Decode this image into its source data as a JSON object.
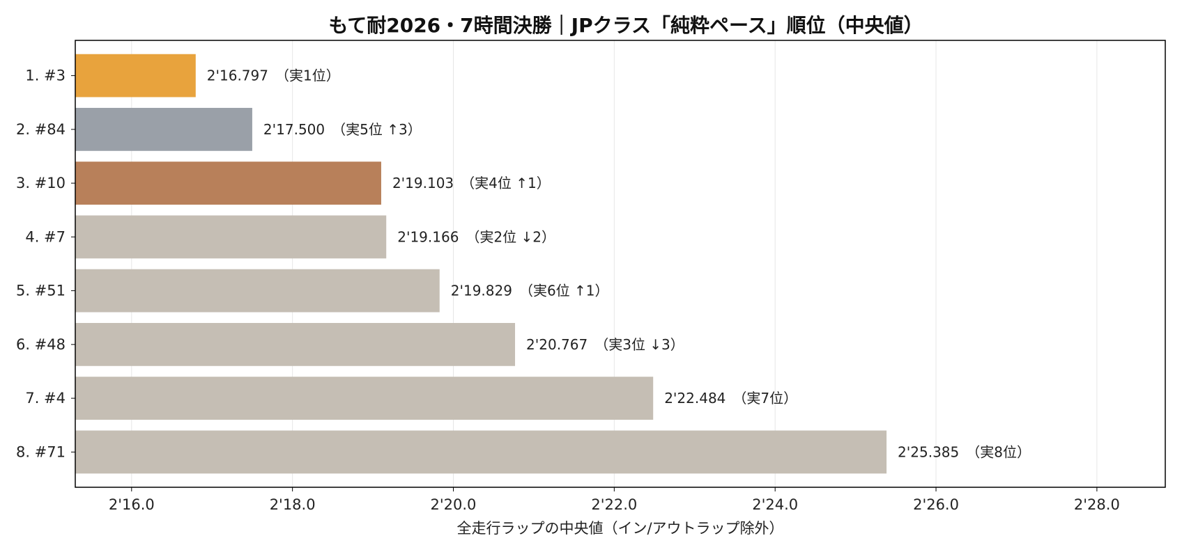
{
  "chart_data": {
    "type": "bar",
    "orientation": "horizontal",
    "title": "もて耐2026・7時間決勝｜JPクラス「純粋ペース」順位（中央値）",
    "xlabel": "全走行ラップの中央値（イン/アウトラップ除外）",
    "ylabel": "",
    "xlim": [
      135.3,
      148.85
    ],
    "xticks": [
      136,
      138,
      140,
      142,
      144,
      146,
      148
    ],
    "xtick_labels": [
      "2'16.0",
      "2'18.0",
      "2'20.0",
      "2'22.0",
      "2'24.0",
      "2'26.0",
      "2'28.0"
    ],
    "grid": "vertical",
    "categories": [
      "1. #3",
      "2. #84",
      "3. #10",
      "4. #7",
      "5. #51",
      "6. #48",
      "7. #4",
      "8. #71"
    ],
    "values": [
      136.797,
      137.5,
      139.103,
      139.166,
      139.829,
      140.767,
      142.484,
      145.385
    ],
    "data_labels": [
      "2'16.797　（実1位）",
      "2'17.500　（実5位 ↑3）",
      "2'19.103　（実4位 ↑1）",
      "2'19.166　（実2位 ↓2）",
      "2'19.829　（実6位 ↑1）",
      "2'20.767　（実3位 ↓3）",
      "2'22.484　（実7位）",
      "2'25.385　（実8位）"
    ],
    "colors": [
      "#E8A33D",
      "#9AA0A8",
      "#B8805A",
      "#C5BEB4",
      "#C5BEB4",
      "#C5BEB4",
      "#C5BEB4",
      "#C5BEB4"
    ]
  }
}
